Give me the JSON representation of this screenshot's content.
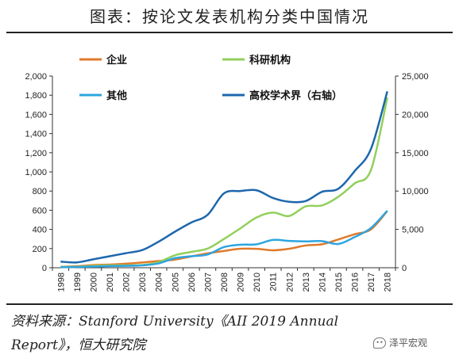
{
  "figure_title": "图表：按论文发表机构分类中国情况",
  "source_line1": "资料来源：Stanford University《AII 2019 Annual",
  "source_line2": "Report》，恒大研究院",
  "watermark": "泽平宏观",
  "chart_data": {
    "type": "line",
    "x": [
      "1998",
      "1999",
      "2000",
      "2001",
      "2002",
      "2003",
      "2004",
      "2005",
      "2006",
      "2007",
      "2008",
      "2009",
      "2010",
      "2011",
      "2012",
      "2013",
      "2014",
      "2015",
      "2016",
      "2017",
      "2018"
    ],
    "y_left": {
      "ticks": [
        0,
        200,
        400,
        600,
        800,
        1000,
        1200,
        1400,
        1600,
        1800,
        2000
      ],
      "tick_labels": [
        "0",
        "200",
        "400",
        "600",
        "800",
        "1,000",
        "1,200",
        "1,400",
        "1,600",
        "1,800",
        "2,000"
      ],
      "ylim": [
        0,
        2000
      ]
    },
    "y_right": {
      "ticks": [
        0,
        5000,
        10000,
        15000,
        20000,
        25000
      ],
      "tick_labels": [
        "0",
        "5,000",
        "10,000",
        "15,000",
        "20,000",
        "25,000"
      ],
      "ylim": [
        0,
        25000
      ]
    },
    "grid": false,
    "series": [
      {
        "name": "企业",
        "axis": "left",
        "color": "#e07a2b",
        "values": [
          10,
          15,
          28,
          33,
          42,
          55,
          70,
          85,
          118,
          150,
          175,
          198,
          197,
          182,
          198,
          232,
          245,
          295,
          350,
          400,
          592
        ]
      },
      {
        "name": "科研机构",
        "axis": "left",
        "color": "#92cf5c",
        "values": [
          8,
          10,
          20,
          25,
          25,
          28,
          58,
          130,
          165,
          200,
          300,
          410,
          525,
          575,
          540,
          640,
          650,
          740,
          880,
          1020,
          1775
        ]
      },
      {
        "name": "其他",
        "axis": "left",
        "color": "#2ea5df",
        "values": [
          5,
          8,
          12,
          18,
          20,
          25,
          45,
          100,
          120,
          138,
          215,
          240,
          245,
          290,
          280,
          275,
          278,
          248,
          320,
          415,
          595
        ]
      },
      {
        "name": "高校学术界（右轴）",
        "axis": "right",
        "color": "#1d67ad",
        "values": [
          800,
          700,
          1100,
          1500,
          1900,
          2300,
          3400,
          4700,
          5900,
          6900,
          9700,
          10000,
          10100,
          9100,
          8600,
          8700,
          9900,
          10300,
          12600,
          15500,
          23000
        ]
      }
    ]
  }
}
